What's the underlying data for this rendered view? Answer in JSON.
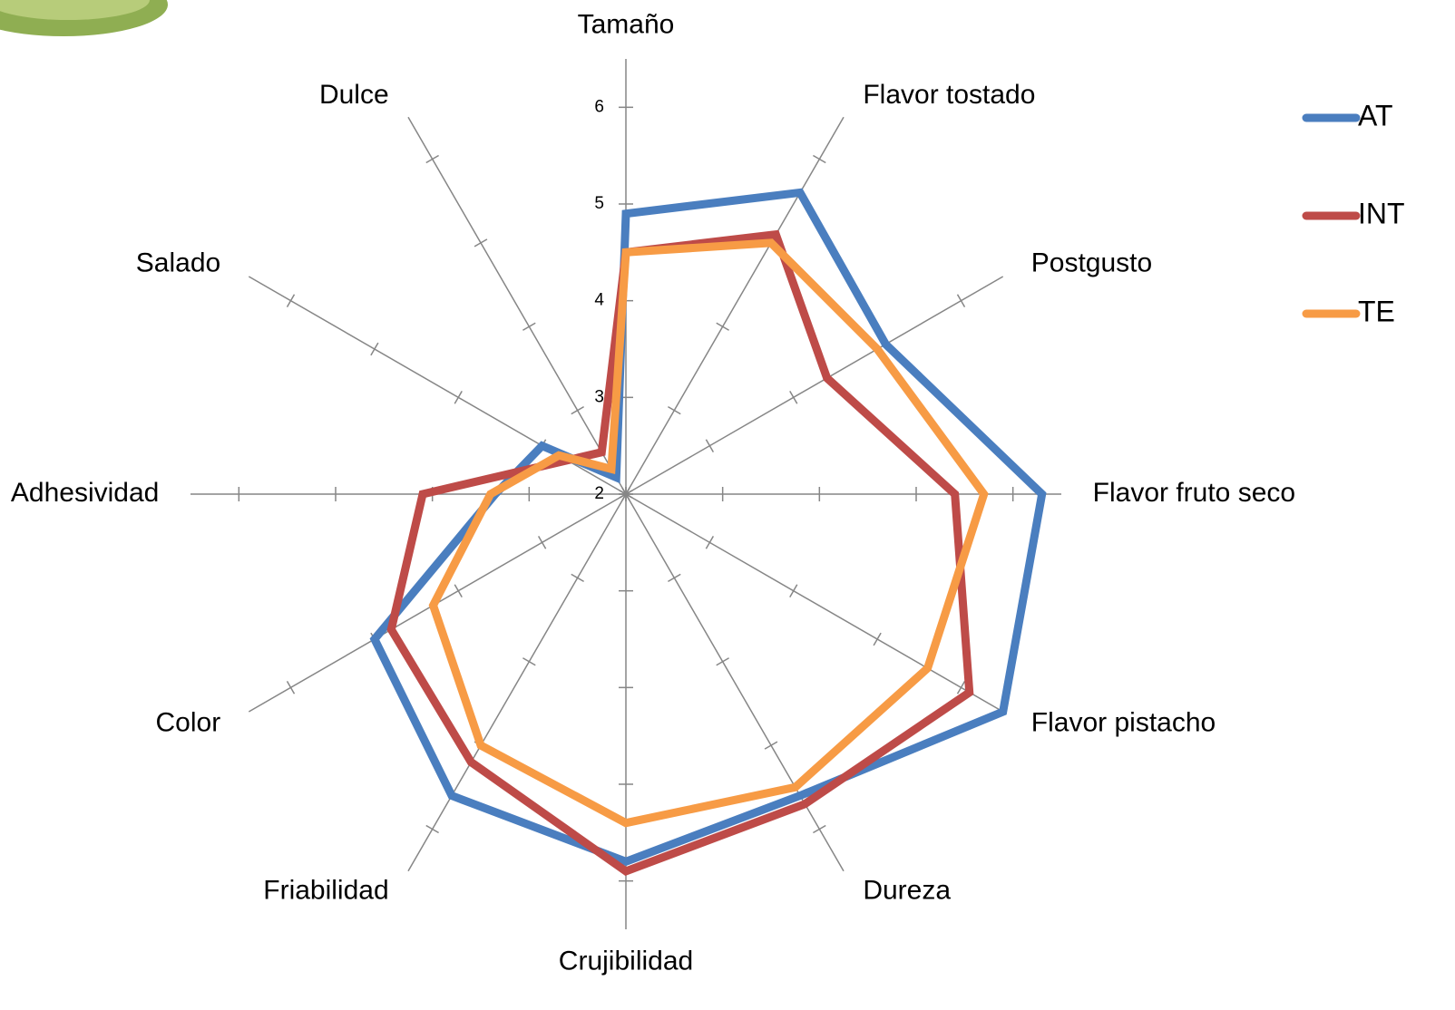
{
  "chart_data": {
    "type": "radar",
    "categories": [
      "Tamaño",
      "Flavor tostado",
      "Postgusto",
      "Flavor fruto seco",
      "Flavor pistacho",
      "Dureza",
      "Crujibilidad",
      "Friabilidad",
      "Color",
      "Adhesividad",
      "Salado",
      "Dulce"
    ],
    "rlim": [
      2,
      6.5
    ],
    "rticks": [
      2,
      3,
      4,
      5,
      6
    ],
    "legend": "right",
    "series": [
      {
        "name": "AT",
        "color": "#4a7ebf",
        "values": [
          4.9,
          5.6,
          5.1,
          6.3,
          6.5,
          5.6,
          5.8,
          5.6,
          5.0,
          3.35,
          3.0,
          2.2
        ]
      },
      {
        "name": "INT",
        "color": "#be4b48",
        "values": [
          4.5,
          5.1,
          4.4,
          5.4,
          6.1,
          5.7,
          5.9,
          5.2,
          4.8,
          4.1,
          2.7,
          2.5
        ]
      },
      {
        "name": "TE",
        "color": "#f79b45",
        "values": [
          4.5,
          5.0,
          5.0,
          5.7,
          5.6,
          5.5,
          5.4,
          5.0,
          4.3,
          3.4,
          2.8,
          2.3
        ]
      }
    ]
  }
}
